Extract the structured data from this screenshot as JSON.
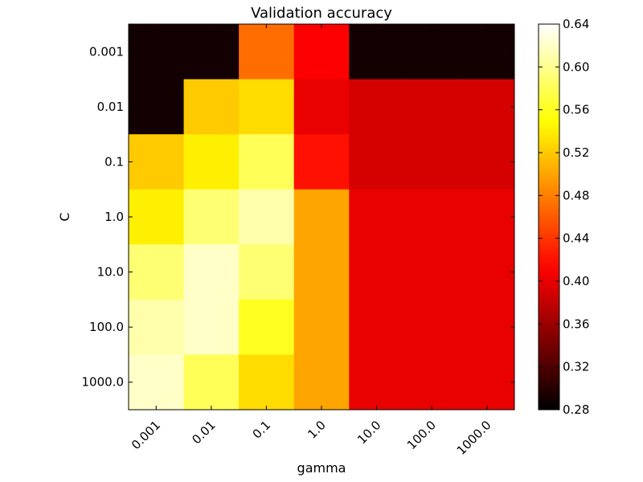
{
  "chart_data": {
    "type": "heatmap",
    "title": "Validation accuracy",
    "xlabel": "gamma",
    "ylabel": "C",
    "x_categories": [
      "0.001",
      "0.01",
      "0.1",
      "1.0",
      "10.0",
      "100.0",
      "1000.0"
    ],
    "y_categories": [
      "0.001",
      "0.01",
      "0.1",
      "1.0",
      "10.0",
      "100.0",
      "1000.0"
    ],
    "values": [
      [
        0.29,
        0.29,
        0.47,
        0.41,
        0.29,
        0.29,
        0.29
      ],
      [
        0.29,
        0.52,
        0.53,
        0.4,
        0.39,
        0.39,
        0.39
      ],
      [
        0.52,
        0.54,
        0.58,
        0.42,
        0.39,
        0.39,
        0.39
      ],
      [
        0.54,
        0.59,
        0.61,
        0.5,
        0.4,
        0.4,
        0.4
      ],
      [
        0.59,
        0.62,
        0.59,
        0.5,
        0.4,
        0.4,
        0.4
      ],
      [
        0.61,
        0.62,
        0.56,
        0.5,
        0.4,
        0.4,
        0.4
      ],
      [
        0.62,
        0.58,
        0.53,
        0.5,
        0.4,
        0.4,
        0.4
      ]
    ],
    "colormap": "hot",
    "vmin": 0.28,
    "vmax": 0.64,
    "colorbar_ticks": [
      "0.28",
      "0.32",
      "0.36",
      "0.40",
      "0.44",
      "0.48",
      "0.52",
      "0.56",
      "0.60",
      "0.64"
    ],
    "grid": false,
    "colorbar_placement": "right"
  }
}
